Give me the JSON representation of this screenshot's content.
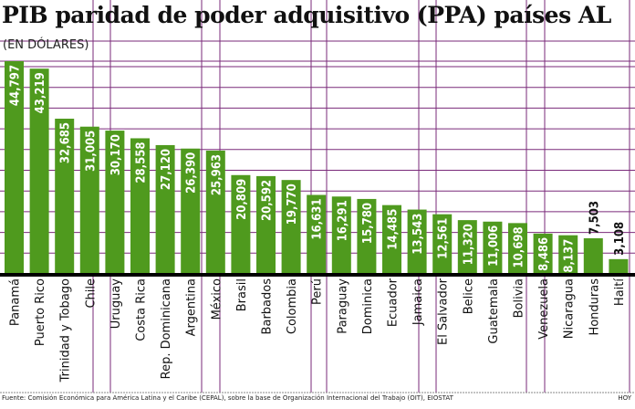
{
  "chart_data": {
    "type": "bar",
    "title": "PIB paridad de poder adquisitivo (PPA) países AL",
    "subtitle": "(EN DÓLARES)",
    "categories": [
      "Panamá",
      "Puerto Rico",
      "Trinidad y Tobago",
      "Chile",
      "Uruguay",
      "Costa Rica",
      "Rep. Dominicana",
      "Argentina",
      "México",
      "Brasil",
      "Barbados",
      "Colombia",
      "Perú",
      "Paraguay",
      "Dominica",
      "Ecuador",
      "Jamaica",
      "El Salvador",
      "Belice",
      "Guatemala",
      "Bolivia",
      "Venezuela",
      "Nicaragua",
      "Honduras",
      "Haití"
    ],
    "values": [
      44797,
      43219,
      32685,
      31005,
      30170,
      28558,
      27120,
      26390,
      25963,
      20809,
      20592,
      19770,
      16631,
      16291,
      15780,
      14485,
      13543,
      12561,
      11320,
      11006,
      10698,
      8486,
      8137,
      7503,
      3108
    ],
    "data_labels": [
      "44,797",
      "43,219",
      "32,685",
      "31,005",
      "30,170",
      "28,558",
      "27,120",
      "26,390",
      "25,963",
      "20,809",
      "20,592",
      "19,770",
      "16,631",
      "16,291",
      "15,780",
      "14,485",
      "13,543",
      "12,561",
      "11,320",
      "11,006",
      "10,698",
      "8,486",
      "8,137",
      "7,503",
      "3,108"
    ],
    "xlabel": "",
    "ylabel": "",
    "ylim": [
      0,
      45000
    ],
    "grid": true,
    "bar_color": "#4f9a1e",
    "grid_color": "#7a2a7a"
  },
  "source": "Fuente: Comisión Económica para América Latina y el Caribe (CEPAL), sobre la base de Organización Internacional del Trabajo (OIT), EIOSTAT",
  "credit": "HOY"
}
